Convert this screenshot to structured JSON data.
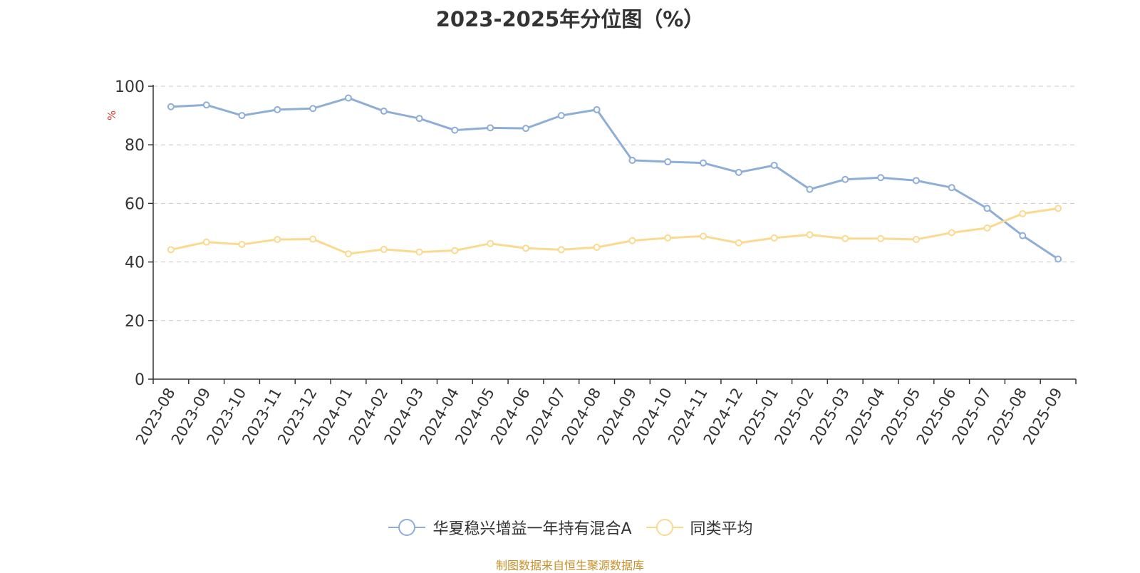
{
  "title": "2023-2025年分位图（%）",
  "source_note": "制图数据来自恒生聚源数据库",
  "colors": {
    "series_a": "#8eaed8",
    "series_b": "#fbd98f",
    "axis": "#333333",
    "grid": "#c8c8c8",
    "unit_label": "#e53935",
    "source_note": "#c8902a"
  },
  "chart_data": {
    "type": "line",
    "title": "2023-2025年分位图（%）",
    "ylabel": "%",
    "ylim": [
      0,
      100
    ],
    "yticks": [
      0,
      20,
      40,
      60,
      80,
      100
    ],
    "grid": true,
    "legend_position": "bottom",
    "categories": [
      "2023-08",
      "2023-09",
      "2023-10",
      "2023-11",
      "2023-12",
      "2024-01",
      "2024-02",
      "2024-03",
      "2024-04",
      "2024-05",
      "2024-06",
      "2024-07",
      "2024-08",
      "2024-09",
      "2024-10",
      "2024-11",
      "2024-12",
      "2025-01",
      "2025-02",
      "2025-03",
      "2025-04",
      "2025-05",
      "2025-06",
      "2025-07",
      "2025-08",
      "2025-09"
    ],
    "series": [
      {
        "name": "华夏稳兴增益一年持有混合A",
        "color": "#8eaed8",
        "values": [
          93.0,
          93.6,
          90.0,
          92.0,
          92.4,
          96.0,
          91.5,
          89.0,
          85.0,
          85.8,
          85.6,
          90.0,
          92.0,
          74.7,
          74.2,
          73.8,
          70.6,
          73.0,
          64.8,
          68.2,
          68.8,
          67.8,
          65.4,
          58.3,
          49.0,
          41.0
        ]
      },
      {
        "name": "同类平均",
        "color": "#fbd98f",
        "values": [
          44.2,
          46.8,
          46.0,
          47.7,
          47.8,
          42.8,
          44.3,
          43.4,
          43.9,
          46.3,
          44.7,
          44.2,
          45.0,
          47.3,
          48.2,
          48.8,
          46.5,
          48.2,
          49.3,
          48.0,
          48.0,
          47.7,
          50.0,
          51.6,
          56.5,
          58.3
        ]
      }
    ]
  }
}
